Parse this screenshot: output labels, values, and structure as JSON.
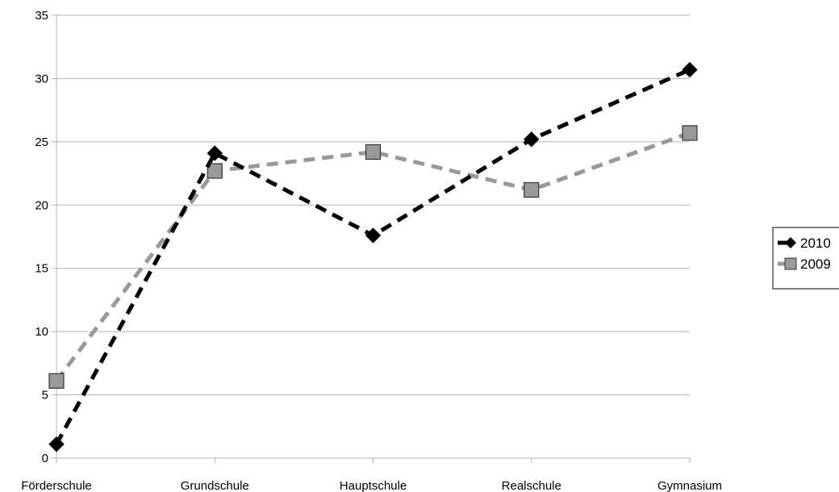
{
  "chart_data": {
    "type": "line",
    "categories": [
      "Förderschule",
      "Grundschule",
      "Hauptschule",
      "Realschule",
      "Gymnasium"
    ],
    "series": [
      {
        "name": "2010",
        "values": [
          1.1,
          24.1,
          17.6,
          25.2,
          30.7
        ],
        "color": "#000000",
        "marker": "diamond"
      },
      {
        "name": "2009",
        "values": [
          6.1,
          22.7,
          24.2,
          21.2,
          25.7
        ],
        "color": "#999999",
        "marker": "square"
      }
    ],
    "ylim": [
      0,
      35
    ],
    "yticks": [
      0,
      5,
      10,
      15,
      20,
      25,
      30,
      35
    ],
    "grid": true,
    "legend_position": "right",
    "title": "",
    "xlabel": "",
    "ylabel": ""
  }
}
